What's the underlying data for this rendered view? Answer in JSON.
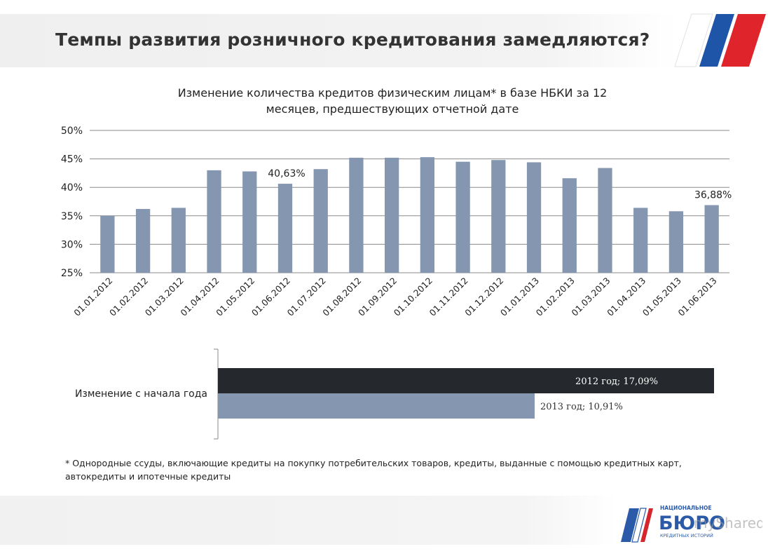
{
  "header": {
    "title": "Темпы развития розничного кредитования замедляются?"
  },
  "chart_data": [
    {
      "type": "bar",
      "title_lines": [
        "Изменение количества кредитов физическим лицам* в базе НБКИ за 12",
        "месяцев, предшествующих отчетной дате"
      ],
      "categories": [
        "01.01.2012",
        "01.02.2012",
        "01.03.2012",
        "01.04.2012",
        "01.05.2012",
        "01.06.2012",
        "01.07.2012",
        "01.08.2012",
        "01.09.2012",
        "01.10.2012",
        "01.11.2012",
        "01.12.2012",
        "01.01.2013",
        "01.02.2013",
        "01.03.2013",
        "01.04.2013",
        "01.05.2013",
        "01.06.2013"
      ],
      "values": [
        35.0,
        36.2,
        36.4,
        43.0,
        42.8,
        40.63,
        43.2,
        45.2,
        45.2,
        45.3,
        44.5,
        44.8,
        44.4,
        41.6,
        43.4,
        36.4,
        35.8,
        36.88
      ],
      "ylim": [
        25,
        50
      ],
      "yticks": [
        "25%",
        "30%",
        "35%",
        "40%",
        "45%",
        "50%"
      ],
      "grid": true,
      "bar_color": "#8496b0",
      "data_labels": [
        {
          "index": 5,
          "text": "40,63%"
        },
        {
          "index": 17,
          "text": "36,88%"
        }
      ]
    },
    {
      "type": "bar",
      "orientation": "horizontal",
      "category": "Изменение с начала года",
      "series": [
        {
          "name": "2012 год",
          "value": 17.09,
          "label": "2012 год; 17,09%",
          "color": "#25282c"
        },
        {
          "name": "2013 год",
          "value": 10.91,
          "label": "2013 год; 10,91%",
          "color": "#8496b0"
        }
      ]
    }
  ],
  "footnote": {
    "line1": "* Однородные ссуды, включающие кредиты на покупку потребительских товаров, кредиты, выданные с помощью кредитных карт,",
    "line2": "автокредиты и ипотечные кредиты"
  },
  "logo": {
    "top_text": "НАЦИОНАЛЬНОЕ",
    "main_text": "БЮРО",
    "bottom_text": "КРЕДИТНЫХ ИСТОРИЙ"
  },
  "watermark": "myShared"
}
